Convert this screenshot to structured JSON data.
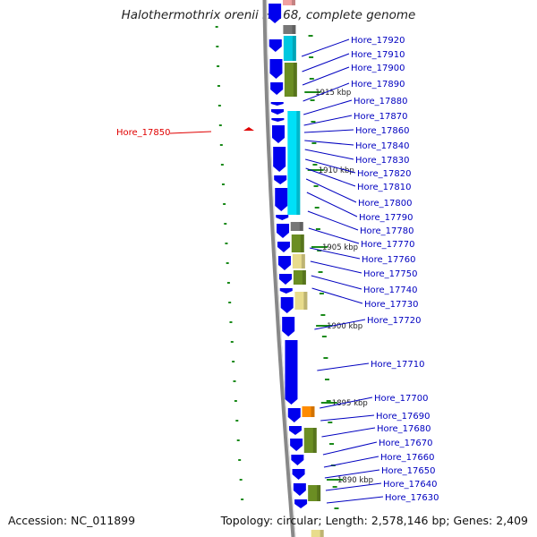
{
  "title": "Halothermothrix orenii H 168, complete genome",
  "accession": "Accession: NC_011899",
  "topology": "Topology: circular; Length: 2,578,146 bp; Genes: 2,409",
  "highlight": {
    "label": "Hore_17850",
    "color": "#e00000"
  },
  "colors": {
    "gene_label": "#0000c0",
    "strand_gene": "#0000ee",
    "backbone": "#777777",
    "tick": "#1a8a1a"
  },
  "kbp_markers": [
    {
      "label": "1915 kbp"
    },
    {
      "label": "1910 kbp"
    },
    {
      "label": "1905 kbp"
    },
    {
      "label": "1900 kbp"
    },
    {
      "label": "1895 kbp"
    },
    {
      "label": "1890 kbp"
    }
  ],
  "genes": [
    {
      "label": "Hore_17920",
      "color": "#00b8d8"
    },
    {
      "label": "Hore_17910",
      "color": "#00b8d8"
    },
    {
      "label": "Hore_17900",
      "color": "#6b8e23"
    },
    {
      "label": "Hore_17890",
      "color": "#6b8e23"
    },
    {
      "label": "Hore_17880",
      "color": "#0000ee"
    },
    {
      "label": "Hore_17870",
      "color": "#00ccee"
    },
    {
      "label": "Hore_17860",
      "color": "#00ccee"
    },
    {
      "label": "Hore_17840",
      "color": "#00ccee"
    },
    {
      "label": "Hore_17830",
      "color": "#00ccee"
    },
    {
      "label": "Hore_17820",
      "color": "#00ccee"
    },
    {
      "label": "Hore_17810",
      "color": "#00ccee"
    },
    {
      "label": "Hore_17800",
      "color": "#00ccee"
    },
    {
      "label": "Hore_17790",
      "color": "#777777"
    },
    {
      "label": "Hore_17780",
      "color": "#6b8e23"
    },
    {
      "label": "Hore_17770",
      "color": "#6b8e23"
    },
    {
      "label": "Hore_17760",
      "color": "#e8dc8c"
    },
    {
      "label": "Hore_17750",
      "color": "#6b8e23"
    },
    {
      "label": "Hore_17740",
      "color": "#e8dc8c"
    },
    {
      "label": "Hore_17730",
      "color": "#e8dc8c"
    },
    {
      "label": "Hore_17720",
      "color": "#0000ee"
    },
    {
      "label": "Hore_17710",
      "color": "#0000ee"
    },
    {
      "label": "Hore_17700",
      "color": "#ff8c00"
    },
    {
      "label": "Hore_17690",
      "color": "#0000ee"
    },
    {
      "label": "Hore_17680",
      "color": "#6b8e23"
    },
    {
      "label": "Hore_17670",
      "color": "#6b8e23"
    },
    {
      "label": "Hore_17660",
      "color": "#0000ee"
    },
    {
      "label": "Hore_17650",
      "color": "#0000ee"
    },
    {
      "label": "Hore_17640",
      "color": "#6b8e23"
    },
    {
      "label": "Hore_17630",
      "color": "#0000ee"
    }
  ]
}
